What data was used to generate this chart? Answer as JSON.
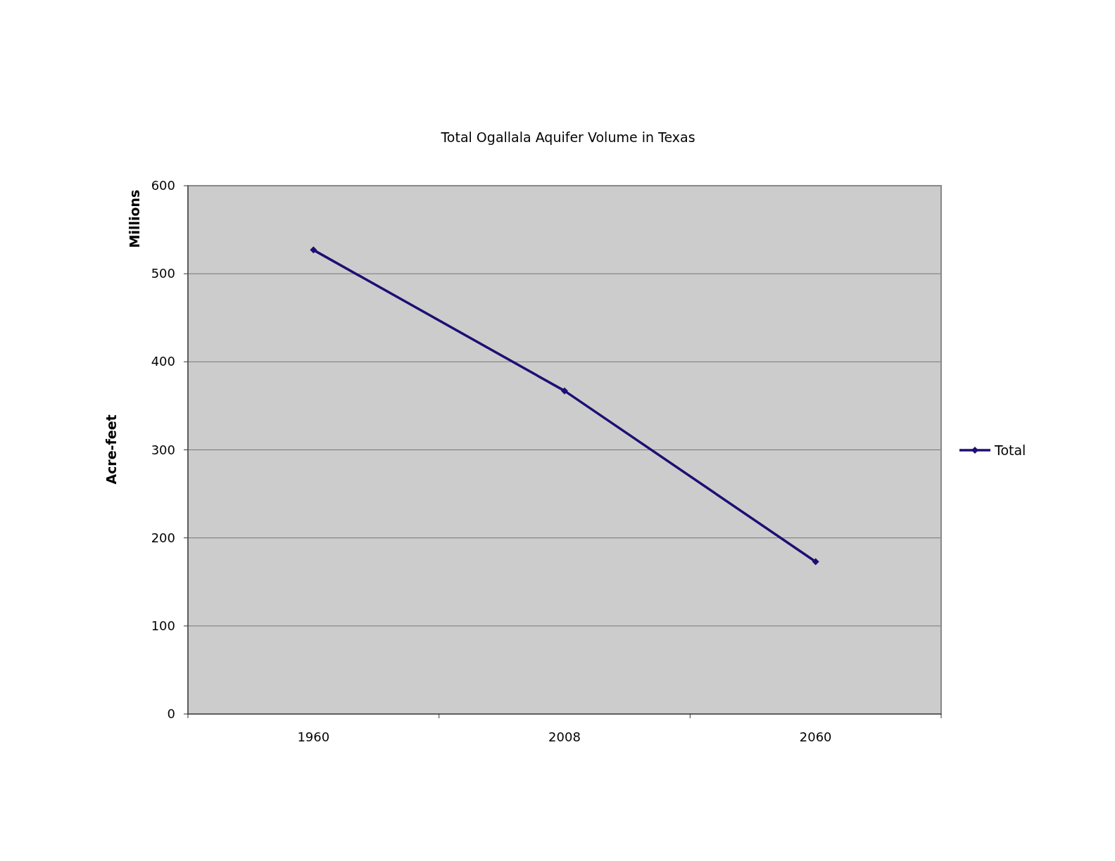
{
  "chart_data": {
    "type": "line",
    "title": "Total Ogallala Aquifer Volume in Texas",
    "ylabel": "Acre-feet",
    "annotations": [
      "Millions"
    ],
    "categories": [
      "1960",
      "2008",
      "2060"
    ],
    "series": [
      {
        "name": "Total",
        "color": "#1c0f73",
        "values": [
          527,
          367,
          173
        ]
      }
    ],
    "ylim": [
      0,
      600
    ],
    "yticks": [
      0,
      100,
      200,
      300,
      400,
      500,
      600
    ],
    "grid": "y",
    "legend": "right",
    "marker": "diamond",
    "line_style": "solid"
  }
}
